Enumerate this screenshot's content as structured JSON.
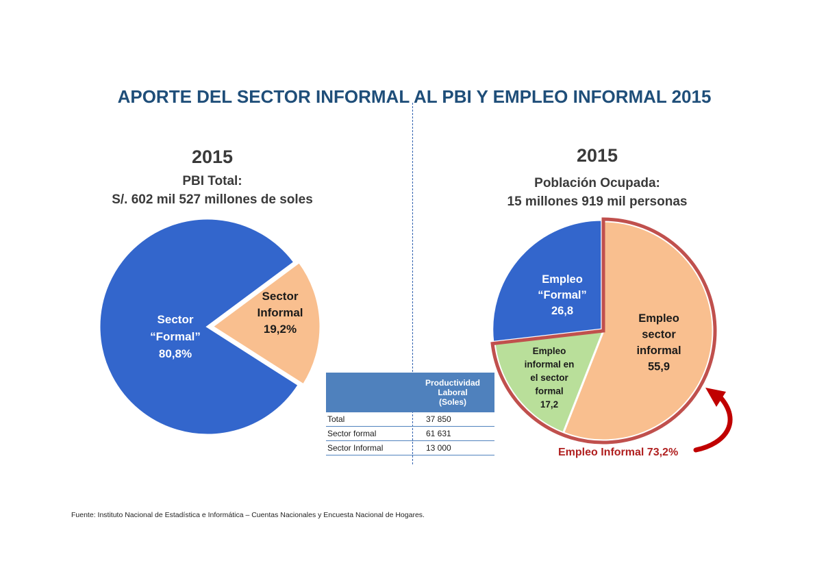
{
  "title": "APORTE DEL SECTOR INFORMAL AL PBI Y EMPLEO INFORMAL 2015",
  "left": {
    "year": "2015",
    "subtitle_line1": "PBI Total:",
    "subtitle_line2": "S/. 602 mil 527 millones de soles"
  },
  "right": {
    "year": "2015",
    "subtitle_line1": "Población Ocupada:",
    "subtitle_line2": "15 millones  919 mil personas",
    "informal_total_label": "Empleo Informal 73,2%"
  },
  "colors": {
    "formal": "#3366cc",
    "informal": "#f9bf8f",
    "informal_formal_sector": "#b9df9a",
    "highlight": "#c0504d",
    "arrow": "#c00000",
    "title": "#1f4e79",
    "table_header": "#4f81bd"
  },
  "chart_data": [
    {
      "type": "pie",
      "title": "PBI Total: S/. 602 mil 527 millones de soles",
      "slices": [
        {
          "name": "Sector “Formal”",
          "label_lines": [
            "Sector",
            "“Formal”",
            "80,8%"
          ],
          "value": 80.8
        },
        {
          "name": "Sector Informal",
          "label_lines": [
            "Sector",
            "Informal",
            "19,2%"
          ],
          "value": 19.2
        }
      ]
    },
    {
      "type": "pie",
      "title": "Población Ocupada: 15 millones 919 mil personas",
      "slices": [
        {
          "name": "Empleo sector informal",
          "label_lines": [
            "Empleo",
            "sector",
            "informal",
            "55,9"
          ],
          "value": 55.9
        },
        {
          "name": "Empleo informal en el sector formal",
          "label_lines": [
            "Empleo",
            "informal en",
            "el sector",
            "formal",
            "17,2"
          ],
          "value": 17.2
        },
        {
          "name": "Empleo “Formal”",
          "label_lines": [
            "Empleo",
            "“Formal”",
            "26,8"
          ],
          "value": 26.8
        }
      ],
      "highlight": {
        "label": "Empleo Informal 73,2%",
        "value": 73.2
      }
    }
  ],
  "table": {
    "header": [
      "",
      "Productividad Laboral (Soles)"
    ],
    "header_lines": [
      "Productividad",
      "Laboral",
      "(Soles)"
    ],
    "rows": [
      {
        "label": "Total",
        "value": "37 850"
      },
      {
        "label": "Sector formal",
        "value": "61 631"
      },
      {
        "label": "Sector Informal",
        "value": "13 000"
      }
    ]
  },
  "source": "Fuente: Instituto Nacional de Estadística e Informática – Cuentas Nacionales y Encuesta Nacional de Hogares."
}
